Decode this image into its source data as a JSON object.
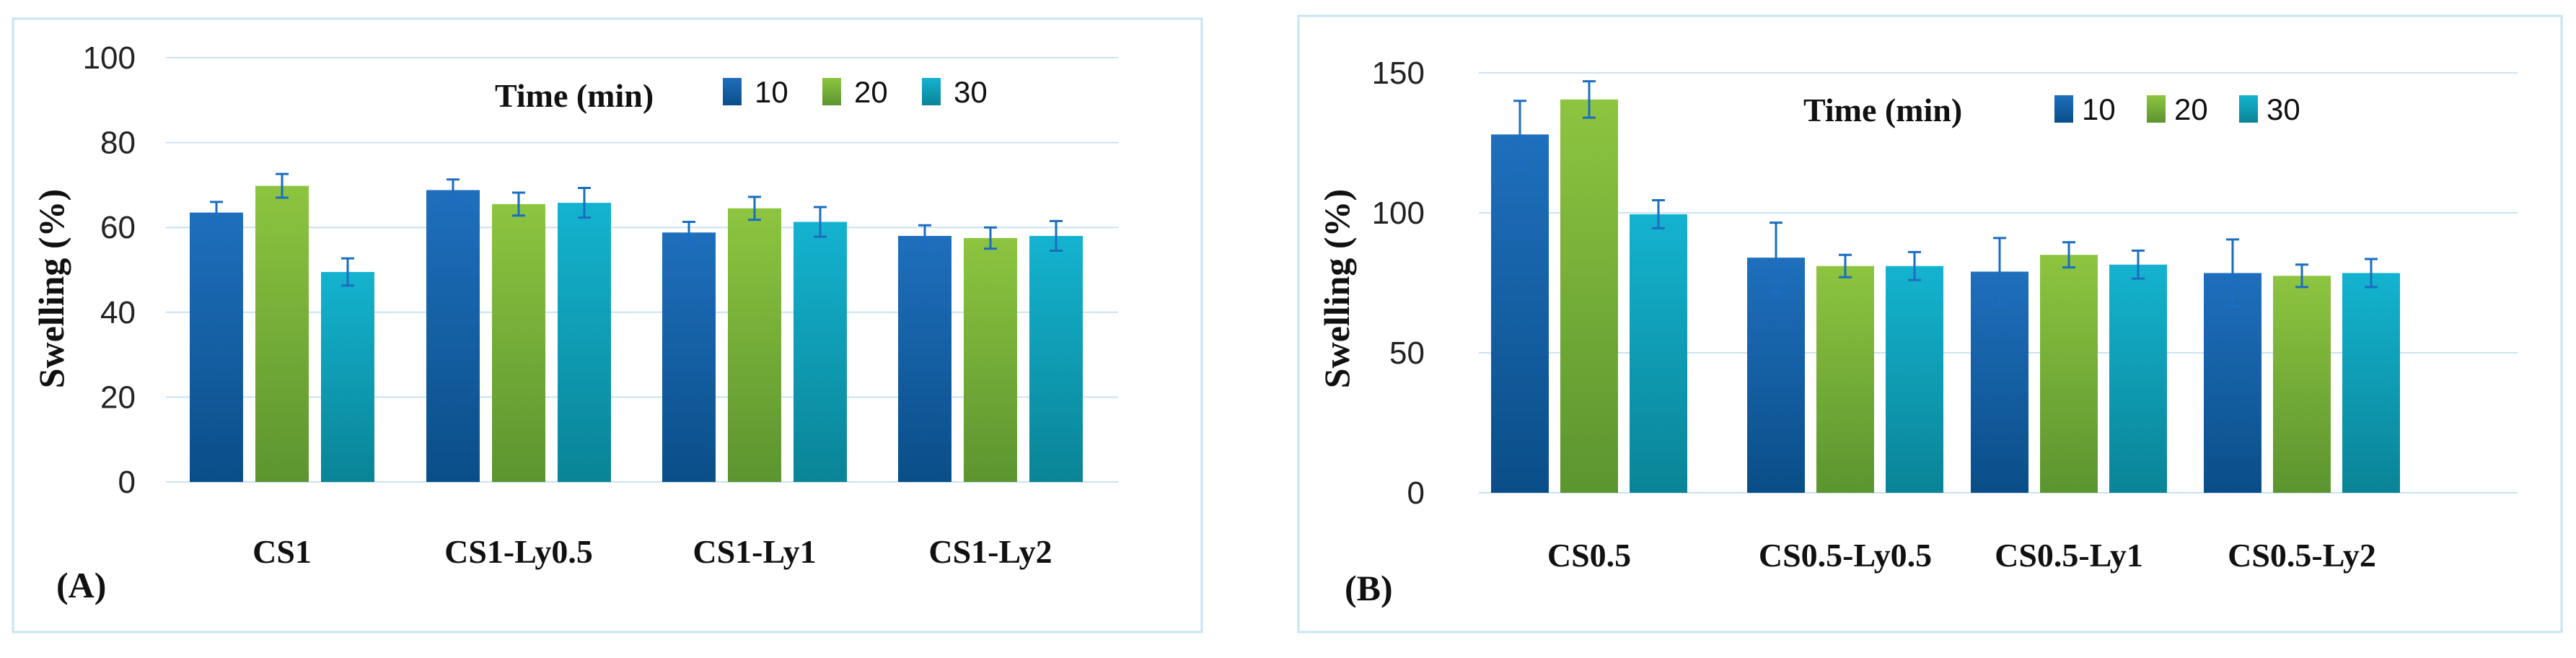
{
  "chart_data": [
    {
      "type": "bar",
      "panel_label": "(A)",
      "ylabel": "Swelling (%)",
      "legend_title": "Time (min)",
      "ylim": [
        0,
        100
      ],
      "yticks": [
        "0",
        "20",
        "40",
        "60",
        "80",
        "100"
      ],
      "categories": [
        "CS1",
        "CS1-Ly0.5",
        "CS1-Ly1",
        "CS1-Ly2"
      ],
      "series": [
        {
          "name": "10",
          "values": [
            63.5,
            68.8,
            58.8,
            58.0
          ],
          "errors": [
            2.5,
            2.5,
            2.5,
            2.5
          ]
        },
        {
          "name": "20",
          "values": [
            69.8,
            65.5,
            64.5,
            57.5
          ],
          "errors": [
            2.8,
            2.7,
            2.7,
            2.5
          ]
        },
        {
          "name": "30",
          "values": [
            49.5,
            65.8,
            61.3,
            58.0
          ],
          "errors": [
            3.2,
            3.5,
            3.5,
            3.5
          ]
        }
      ]
    },
    {
      "type": "bar",
      "panel_label": "(B)",
      "ylabel": "Swelling (%)",
      "legend_title": "Time (min)",
      "ylim": [
        0,
        150
      ],
      "yticks": [
        "0",
        "50",
        "100",
        "150"
      ],
      "categories": [
        "CS0.5",
        "CS0.5-Ly0.5",
        "CS0.5-Ly1",
        "CS0.5-Ly2"
      ],
      "series": [
        {
          "name": "10",
          "values": [
            128,
            84,
            79,
            78.5
          ],
          "errors": [
            12,
            12.5,
            12,
            12
          ]
        },
        {
          "name": "20",
          "values": [
            140.5,
            81,
            85,
            77.5
          ],
          "errors": [
            6.5,
            4,
            4.5,
            4
          ]
        },
        {
          "name": "30",
          "values": [
            99.5,
            81,
            81.5,
            78.5
          ],
          "errors": [
            5,
            5,
            5,
            5
          ]
        }
      ]
    }
  ],
  "colors": {
    "series_top": [
      "#1f6fbd",
      "#8dc540",
      "#14b3d0"
    ],
    "series_bottom": [
      "#0a4e88",
      "#5c9430",
      "#0a8496"
    ],
    "error_bar": "#1a6dc0",
    "frame": "#c6e4f3",
    "grid": "#c9e3f1"
  }
}
